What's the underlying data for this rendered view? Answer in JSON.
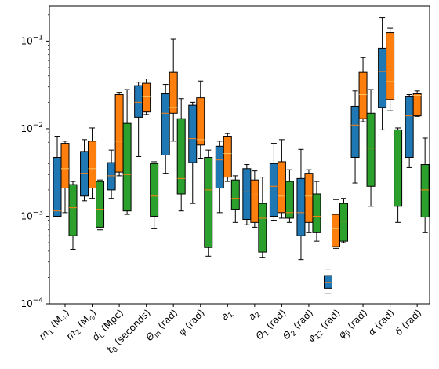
{
  "chart_data": {
    "type": "boxplot",
    "yscale": "log",
    "ylim": [
      0.0001,
      0.25
    ],
    "yticks": [
      {
        "value": 0.0001,
        "base": "10",
        "exp": "−4"
      },
      {
        "value": 0.001,
        "base": "10",
        "exp": "−3"
      },
      {
        "value": 0.01,
        "base": "10",
        "exp": "−2"
      },
      {
        "value": 0.1,
        "base": "10",
        "exp": "−1"
      }
    ],
    "grid": false,
    "legend": "none",
    "categories": [
      {
        "main": "m",
        "sub": "1",
        "unit": " (M",
        "unitsub": "⊙",
        "close": ")"
      },
      {
        "main": "m",
        "sub": "2",
        "unit": " (M",
        "unitsub": "⊙",
        "close": ")"
      },
      {
        "main": "d",
        "sub": "L",
        "unit": " (Mpc)",
        "unitsub": "",
        "close": ""
      },
      {
        "main": "t",
        "sub": "0",
        "unit": " (seconds)",
        "unitsub": "",
        "close": ""
      },
      {
        "main": "Θ",
        "sub": "jn",
        "unit": " (rad)",
        "unitsub": "",
        "close": ""
      },
      {
        "main": "ψ",
        "sub": "",
        "unit": " (rad)",
        "unitsub": "",
        "close": ""
      },
      {
        "main": "a",
        "sub": "1",
        "unit": "",
        "unitsub": "",
        "close": ""
      },
      {
        "main": "a",
        "sub": "2",
        "unit": "",
        "unitsub": "",
        "close": ""
      },
      {
        "main": "Θ",
        "sub": "1",
        "unit": " (rad)",
        "unitsub": "",
        "close": ""
      },
      {
        "main": "Θ",
        "sub": "2",
        "unit": " (rad)",
        "unitsub": "",
        "close": ""
      },
      {
        "main": "φ",
        "sub": "12",
        "unit": " (rad)",
        "unitsub": "",
        "close": ""
      },
      {
        "main": "φ",
        "sub": "jl",
        "unit": " (rad)",
        "unitsub": "",
        "close": ""
      },
      {
        "main": "α",
        "sub": "",
        "unit": " (rad)",
        "unitsub": "",
        "close": ""
      },
      {
        "main": "δ",
        "sub": "",
        "unit": " (rad)",
        "unitsub": "",
        "close": ""
      }
    ],
    "series": [
      {
        "color": "#1f77b4",
        "median_color": "#ff7f0e",
        "boxes": [
          {
            "whislo": 0.00098,
            "q1": 0.001,
            "med": 0.00115,
            "q3": 0.0047,
            "whishi": 0.0082
          },
          {
            "whislo": 0.0015,
            "q1": 0.0017,
            "med": 0.0031,
            "q3": 0.0055,
            "whishi": 0.0075
          },
          {
            "whislo": 0.0016,
            "q1": 0.002,
            "med": 0.0029,
            "q3": 0.0041,
            "whishi": 0.0057
          },
          {
            "whislo": 0.0048,
            "q1": 0.0135,
            "med": 0.02,
            "q3": 0.031,
            "whishi": 0.034
          },
          {
            "whislo": 0.0031,
            "q1": 0.005,
            "med": 0.015,
            "q3": 0.025,
            "whishi": 0.032
          },
          {
            "whislo": 0.0014,
            "q1": 0.0041,
            "med": 0.0077,
            "q3": 0.0185,
            "whishi": 0.02
          },
          {
            "whislo": 0.0011,
            "q1": 0.0021,
            "med": 0.0044,
            "q3": 0.0063,
            "whishi": 0.0072
          },
          {
            "whislo": 0.0008,
            "q1": 0.00092,
            "med": 0.0019,
            "q3": 0.0035,
            "whishi": 0.0039
          },
          {
            "whislo": 0.0009,
            "q1": 0.001,
            "med": 0.0022,
            "q3": 0.004,
            "whishi": 0.0068
          },
          {
            "whislo": 0.00032,
            "q1": 0.0006,
            "med": 0.0011,
            "q3": 0.0027,
            "whishi": 0.0058
          },
          {
            "whislo": 0.00013,
            "q1": 0.00015,
            "med": 0.000175,
            "q3": 0.00021,
            "whishi": 0.00025
          },
          {
            "whislo": 0.0024,
            "q1": 0.0047,
            "med": 0.011,
            "q3": 0.018,
            "whishi": 0.027
          },
          {
            "whislo": 0.0097,
            "q1": 0.0175,
            "med": 0.045,
            "q3": 0.083,
            "whishi": 0.185
          },
          {
            "whislo": 0.0036,
            "q1": 0.0047,
            "med": 0.014,
            "q3": 0.0235,
            "whishi": 0.0245
          }
        ]
      },
      {
        "color": "#ff7f0e",
        "median_color": "#ffbf60",
        "boxes": [
          {
            "whislo": 0.0011,
            "q1": 0.0021,
            "med": 0.0035,
            "q3": 0.0068,
            "whishi": 0.0072
          },
          {
            "whislo": 0.0016,
            "q1": 0.0021,
            "med": 0.0035,
            "q3": 0.0072,
            "whishi": 0.0102
          },
          {
            "whislo": 0.0029,
            "q1": 0.0032,
            "med": 0.0072,
            "q3": 0.0245,
            "whishi": 0.026
          },
          {
            "whislo": 0.0145,
            "q1": 0.0155,
            "med": 0.0235,
            "q3": 0.033,
            "whishi": 0.037
          },
          {
            "whislo": 0.0072,
            "q1": 0.015,
            "med": 0.0175,
            "q3": 0.044,
            "whishi": 0.105
          },
          {
            "whislo": 0.0046,
            "q1": 0.0065,
            "med": 0.0075,
            "q3": 0.0225,
            "whishi": 0.035
          },
          {
            "whislo": 0.0025,
            "q1": 0.0028,
            "med": 0.0052,
            "q3": 0.0082,
            "whishi": 0.0088
          },
          {
            "whislo": 0.00075,
            "q1": 0.00085,
            "med": 0.00175,
            "q3": 0.0026,
            "whishi": 0.0033
          },
          {
            "whislo": 0.00095,
            "q1": 0.0011,
            "med": 0.0017,
            "q3": 0.0042,
            "whishi": 0.0075
          },
          {
            "whislo": 0.00065,
            "q1": 0.00085,
            "med": 0.0017,
            "q3": 0.0031,
            "whishi": 0.0034
          },
          {
            "whislo": 0.00043,
            "q1": 0.00045,
            "med": 0.00072,
            "q3": 0.00105,
            "whishi": 0.00155
          },
          {
            "whislo": 0.012,
            "q1": 0.013,
            "med": 0.0245,
            "q3": 0.044,
            "whishi": 0.065
          },
          {
            "whislo": 0.016,
            "q1": 0.0215,
            "med": 0.0345,
            "q3": 0.125,
            "whishi": 0.14
          },
          {
            "whislo": 0.0138,
            "q1": 0.014,
            "med": 0.024,
            "q3": 0.025,
            "whishi": 0.027
          }
        ]
      },
      {
        "color": "#2ca02c",
        "median_color": "#ff7f0e",
        "boxes": [
          {
            "whislo": 0.00042,
            "q1": 0.0006,
            "med": 0.00125,
            "q3": 0.0023,
            "whishi": 0.0025
          },
          {
            "whislo": 0.0007,
            "q1": 0.00075,
            "med": 0.0012,
            "q3": 0.0025,
            "whishi": 0.0026
          },
          {
            "whislo": 0.00105,
            "q1": 0.00115,
            "med": 0.003,
            "q3": 0.0115,
            "whishi": 0.028
          },
          {
            "whislo": 0.00072,
            "q1": 0.001,
            "med": 0.0017,
            "q3": 0.004,
            "whishi": 0.0042
          },
          {
            "whislo": 0.00115,
            "q1": 0.0018,
            "med": 0.0027,
            "q3": 0.013,
            "whishi": 0.022
          },
          {
            "whislo": 0.00035,
            "q1": 0.00044,
            "med": 0.002,
            "q3": 0.0047,
            "whishi": 0.0057
          },
          {
            "whislo": 0.00085,
            "q1": 0.0012,
            "med": 0.0016,
            "q3": 0.0026,
            "whishi": 0.0029
          },
          {
            "whislo": 0.00034,
            "q1": 0.00039,
            "med": 0.00095,
            "q3": 0.0014,
            "whishi": 0.0028
          },
          {
            "whislo": 0.00085,
            "q1": 0.00095,
            "med": 0.0011,
            "q3": 0.0025,
            "whishi": 0.0034
          },
          {
            "whislo": 0.00052,
            "q1": 0.00065,
            "med": 0.001,
            "q3": 0.0018,
            "whishi": 0.0025
          },
          {
            "whislo": 0.0005,
            "q1": 0.00052,
            "med": 0.00088,
            "q3": 0.0014,
            "whishi": 0.0016
          },
          {
            "whislo": 0.0013,
            "q1": 0.0022,
            "med": 0.006,
            "q3": 0.015,
            "whishi": 0.028
          },
          {
            "whislo": 0.00085,
            "q1": 0.0013,
            "med": 0.0021,
            "q3": 0.0097,
            "whishi": 0.0102
          },
          {
            "whislo": 0.00065,
            "q1": 0.00098,
            "med": 0.002,
            "q3": 0.0039,
            "whishi": 0.0078
          }
        ]
      }
    ]
  }
}
